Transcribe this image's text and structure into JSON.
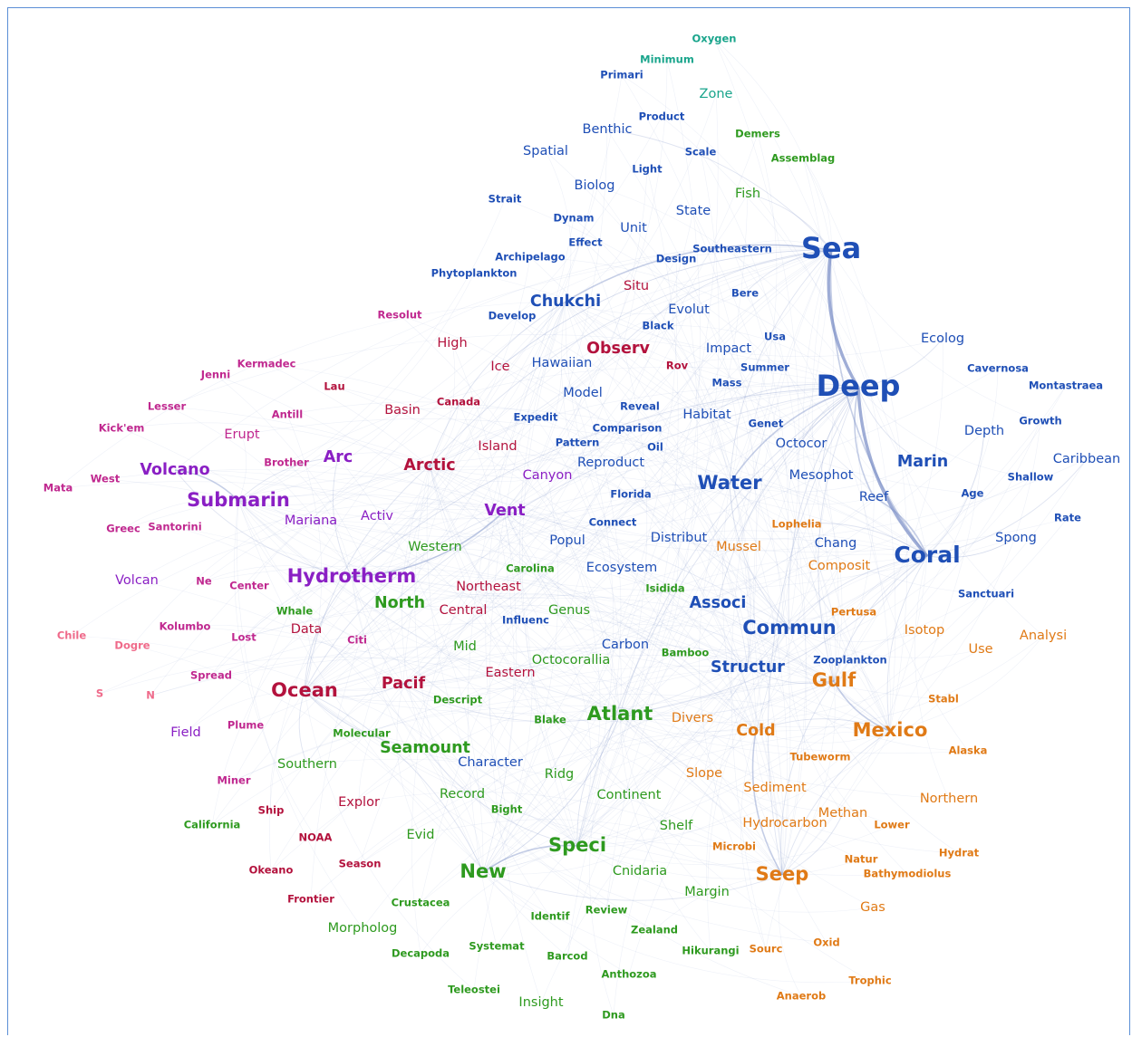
{
  "clusters": {
    "blue": "#1f4fb6",
    "teal": "#1aa58c",
    "green": "#2e9a1f",
    "orange": "#e07a16",
    "purple": "#8a1fc4",
    "crimson": "#b3123d",
    "magenta": "#c0288f",
    "pink": "#ef6a8a"
  },
  "edge_color": "#7f92c8",
  "nodes": [
    {
      "label": "Oxygen",
      "cluster": "teal",
      "size": 1
    },
    {
      "label": "Minimum",
      "cluster": "teal",
      "size": 1
    },
    {
      "label": "Primari",
      "cluster": "blue",
      "size": 1
    },
    {
      "label": "Zone",
      "cluster": "teal",
      "size": 2
    },
    {
      "label": "Product",
      "cluster": "blue",
      "size": 1
    },
    {
      "label": "Benthic",
      "cluster": "blue",
      "size": 2
    },
    {
      "label": "Demers",
      "cluster": "green",
      "size": 1
    },
    {
      "label": "Spatial",
      "cluster": "blue",
      "size": 2
    },
    {
      "label": "Scale",
      "cluster": "blue",
      "size": 1
    },
    {
      "label": "Assemblag",
      "cluster": "green",
      "size": 1
    },
    {
      "label": "Light",
      "cluster": "blue",
      "size": 1
    },
    {
      "label": "Biolog",
      "cluster": "blue",
      "size": 2
    },
    {
      "label": "Fish",
      "cluster": "green",
      "size": 2
    },
    {
      "label": "Strait",
      "cluster": "blue",
      "size": 1
    },
    {
      "label": "State",
      "cluster": "blue",
      "size": 2
    },
    {
      "label": "Dynam",
      "cluster": "blue",
      "size": 1
    },
    {
      "label": "Unit",
      "cluster": "blue",
      "size": 2
    },
    {
      "label": "Effect",
      "cluster": "blue",
      "size": 1
    },
    {
      "label": "Southeastern",
      "cluster": "blue",
      "size": 1
    },
    {
      "label": "Sea",
      "cluster": "blue",
      "size": 6
    },
    {
      "label": "Archipelago",
      "cluster": "blue",
      "size": 1
    },
    {
      "label": "Design",
      "cluster": "blue",
      "size": 1
    },
    {
      "label": "Phytoplankton",
      "cluster": "blue",
      "size": 1
    },
    {
      "label": "Situ",
      "cluster": "crimson",
      "size": 2
    },
    {
      "label": "Chukchi",
      "cluster": "blue",
      "size": 3
    },
    {
      "label": "Bere",
      "cluster": "blue",
      "size": 1
    },
    {
      "label": "Resolut",
      "cluster": "magenta",
      "size": 1
    },
    {
      "label": "Develop",
      "cluster": "blue",
      "size": 1
    },
    {
      "label": "Evolut",
      "cluster": "blue",
      "size": 2
    },
    {
      "label": "Black",
      "cluster": "blue",
      "size": 1
    },
    {
      "label": "High",
      "cluster": "crimson",
      "size": 2
    },
    {
      "label": "Observ",
      "cluster": "crimson",
      "size": 3
    },
    {
      "label": "Impact",
      "cluster": "blue",
      "size": 2
    },
    {
      "label": "Usa",
      "cluster": "blue",
      "size": 1
    },
    {
      "label": "Ecolog",
      "cluster": "blue",
      "size": 2
    },
    {
      "label": "Kermadec",
      "cluster": "magenta",
      "size": 1
    },
    {
      "label": "Ice",
      "cluster": "crimson",
      "size": 2
    },
    {
      "label": "Hawaiian",
      "cluster": "blue",
      "size": 2
    },
    {
      "label": "Rov",
      "cluster": "crimson",
      "size": 1
    },
    {
      "label": "Summer",
      "cluster": "blue",
      "size": 1
    },
    {
      "label": "Cavernosa",
      "cluster": "blue",
      "size": 1
    },
    {
      "label": "Jenni",
      "cluster": "magenta",
      "size": 1
    },
    {
      "label": "Mass",
      "cluster": "blue",
      "size": 1
    },
    {
      "label": "Deep",
      "cluster": "blue",
      "size": 6
    },
    {
      "label": "Montastraea",
      "cluster": "blue",
      "size": 1
    },
    {
      "label": "Lau",
      "cluster": "crimson",
      "size": 1
    },
    {
      "label": "Model",
      "cluster": "blue",
      "size": 2
    },
    {
      "label": "Lesser",
      "cluster": "magenta",
      "size": 1
    },
    {
      "label": "Canada",
      "cluster": "crimson",
      "size": 1
    },
    {
      "label": "Basin",
      "cluster": "crimson",
      "size": 2
    },
    {
      "label": "Reveal",
      "cluster": "blue",
      "size": 1
    },
    {
      "label": "Antill",
      "cluster": "magenta",
      "size": 1
    },
    {
      "label": "Habitat",
      "cluster": "blue",
      "size": 2
    },
    {
      "label": "Expedit",
      "cluster": "blue",
      "size": 1
    },
    {
      "label": "Growth",
      "cluster": "blue",
      "size": 1
    },
    {
      "label": "Kick'em",
      "cluster": "magenta",
      "size": 1
    },
    {
      "label": "Comparison",
      "cluster": "blue",
      "size": 1
    },
    {
      "label": "Genet",
      "cluster": "blue",
      "size": 1
    },
    {
      "label": "Erupt",
      "cluster": "magenta",
      "size": 2
    },
    {
      "label": "Depth",
      "cluster": "blue",
      "size": 2
    },
    {
      "label": "Pattern",
      "cluster": "blue",
      "size": 1
    },
    {
      "label": "Octocor",
      "cluster": "blue",
      "size": 2
    },
    {
      "label": "Island",
      "cluster": "crimson",
      "size": 2
    },
    {
      "label": "Oil",
      "cluster": "blue",
      "size": 1
    },
    {
      "label": "Caribbean",
      "cluster": "blue",
      "size": 2
    },
    {
      "label": "Brother",
      "cluster": "magenta",
      "size": 1
    },
    {
      "label": "Arc",
      "cluster": "purple",
      "size": 3
    },
    {
      "label": "Arctic",
      "cluster": "crimson",
      "size": 3
    },
    {
      "label": "Reproduct",
      "cluster": "blue",
      "size": 2
    },
    {
      "label": "Marin",
      "cluster": "blue",
      "size": 3
    },
    {
      "label": "Mata",
      "cluster": "magenta",
      "size": 1
    },
    {
      "label": "West",
      "cluster": "magenta",
      "size": 1
    },
    {
      "label": "Volcano",
      "cluster": "purple",
      "size": 3
    },
    {
      "label": "Mesophot",
      "cluster": "blue",
      "size": 2
    },
    {
      "label": "Shallow",
      "cluster": "blue",
      "size": 1
    },
    {
      "label": "Canyon",
      "cluster": "purple",
      "size": 2
    },
    {
      "label": "Water",
      "cluster": "blue",
      "size": 4
    },
    {
      "label": "Florida",
      "cluster": "blue",
      "size": 1
    },
    {
      "label": "Reef",
      "cluster": "blue",
      "size": 2
    },
    {
      "label": "Age",
      "cluster": "blue",
      "size": 1
    },
    {
      "label": "Submarin",
      "cluster": "purple",
      "size": 4
    },
    {
      "label": "Mariana",
      "cluster": "purple",
      "size": 2
    },
    {
      "label": "Activ",
      "cluster": "purple",
      "size": 2
    },
    {
      "label": "Vent",
      "cluster": "purple",
      "size": 3
    },
    {
      "label": "Rate",
      "cluster": "blue",
      "size": 1
    },
    {
      "label": "Greec",
      "cluster": "magenta",
      "size": 1
    },
    {
      "label": "Santorini",
      "cluster": "magenta",
      "size": 1
    },
    {
      "label": "Connect",
      "cluster": "blue",
      "size": 1
    },
    {
      "label": "Lophelia",
      "cluster": "orange",
      "size": 1
    },
    {
      "label": "Distribut",
      "cluster": "blue",
      "size": 2
    },
    {
      "label": "Western",
      "cluster": "green",
      "size": 2
    },
    {
      "label": "Popul",
      "cluster": "blue",
      "size": 2
    },
    {
      "label": "Mussel",
      "cluster": "orange",
      "size": 2
    },
    {
      "label": "Chang",
      "cluster": "blue",
      "size": 2
    },
    {
      "label": "Spong",
      "cluster": "blue",
      "size": 2
    },
    {
      "label": "Coral",
      "cluster": "blue",
      "size": 5
    },
    {
      "label": "Carolina",
      "cluster": "green",
      "size": 1
    },
    {
      "label": "Ecosystem",
      "cluster": "blue",
      "size": 2
    },
    {
      "label": "Composit",
      "cluster": "orange",
      "size": 2
    },
    {
      "label": "Hydrotherm",
      "cluster": "purple",
      "size": 4
    },
    {
      "label": "Volcan",
      "cluster": "purple",
      "size": 2
    },
    {
      "label": "Ne",
      "cluster": "magenta",
      "size": 1
    },
    {
      "label": "Center",
      "cluster": "magenta",
      "size": 1
    },
    {
      "label": "Northeast",
      "cluster": "crimson",
      "size": 2
    },
    {
      "label": "Isidida",
      "cluster": "green",
      "size": 1
    },
    {
      "label": "Sanctuari",
      "cluster": "blue",
      "size": 1
    },
    {
      "label": "North",
      "cluster": "green",
      "size": 3
    },
    {
      "label": "Associ",
      "cluster": "blue",
      "size": 3
    },
    {
      "label": "Genus",
      "cluster": "green",
      "size": 2
    },
    {
      "label": "Whale",
      "cluster": "green",
      "size": 1
    },
    {
      "label": "Central",
      "cluster": "crimson",
      "size": 2
    },
    {
      "label": "Influenc",
      "cluster": "blue",
      "size": 1
    },
    {
      "label": "Pertusa",
      "cluster": "orange",
      "size": 1
    },
    {
      "label": "Kolumbo",
      "cluster": "magenta",
      "size": 1
    },
    {
      "label": "Data",
      "cluster": "crimson",
      "size": 2
    },
    {
      "label": "Commun",
      "cluster": "blue",
      "size": 4
    },
    {
      "label": "Isotop",
      "cluster": "orange",
      "size": 2
    },
    {
      "label": "Analysi",
      "cluster": "orange",
      "size": 2
    },
    {
      "label": "Chile",
      "cluster": "pink",
      "size": 1
    },
    {
      "label": "Lost",
      "cluster": "magenta",
      "size": 1
    },
    {
      "label": "Dogre",
      "cluster": "pink",
      "size": 1
    },
    {
      "label": "Citi",
      "cluster": "magenta",
      "size": 1
    },
    {
      "label": "Mid",
      "cluster": "green",
      "size": 2
    },
    {
      "label": "Carbon",
      "cluster": "blue",
      "size": 2
    },
    {
      "label": "Bamboo",
      "cluster": "green",
      "size": 1
    },
    {
      "label": "Use",
      "cluster": "orange",
      "size": 2
    },
    {
      "label": "Zooplankton",
      "cluster": "blue",
      "size": 1
    },
    {
      "label": "Octocorallia",
      "cluster": "green",
      "size": 2
    },
    {
      "label": "Spread",
      "cluster": "magenta",
      "size": 1
    },
    {
      "label": "Structur",
      "cluster": "blue",
      "size": 3
    },
    {
      "label": "Eastern",
      "cluster": "crimson",
      "size": 2
    },
    {
      "label": "Gulf",
      "cluster": "orange",
      "size": 4
    },
    {
      "label": "Ocean",
      "cluster": "crimson",
      "size": 4
    },
    {
      "label": "Pacif",
      "cluster": "crimson",
      "size": 3
    },
    {
      "label": "S",
      "cluster": "pink",
      "size": 1
    },
    {
      "label": "N",
      "cluster": "pink",
      "size": 1
    },
    {
      "label": "Stabl",
      "cluster": "orange",
      "size": 1
    },
    {
      "label": "Descript",
      "cluster": "green",
      "size": 1
    },
    {
      "label": "Atlant",
      "cluster": "green",
      "size": 4
    },
    {
      "label": "Divers",
      "cluster": "orange",
      "size": 2
    },
    {
      "label": "Blake",
      "cluster": "green",
      "size": 1
    },
    {
      "label": "Field",
      "cluster": "purple",
      "size": 2
    },
    {
      "label": "Plume",
      "cluster": "magenta",
      "size": 1
    },
    {
      "label": "Cold",
      "cluster": "orange",
      "size": 3
    },
    {
      "label": "Mexico",
      "cluster": "orange",
      "size": 4
    },
    {
      "label": "Molecular",
      "cluster": "green",
      "size": 1
    },
    {
      "label": "Alaska",
      "cluster": "orange",
      "size": 1
    },
    {
      "label": "Seamount",
      "cluster": "green",
      "size": 3
    },
    {
      "label": "Tubeworm",
      "cluster": "orange",
      "size": 1
    },
    {
      "label": "Southern",
      "cluster": "green",
      "size": 2
    },
    {
      "label": "Character",
      "cluster": "blue",
      "size": 2
    },
    {
      "label": "Ridg",
      "cluster": "green",
      "size": 2
    },
    {
      "label": "Slope",
      "cluster": "orange",
      "size": 2
    },
    {
      "label": "Miner",
      "cluster": "magenta",
      "size": 1
    },
    {
      "label": "Sediment",
      "cluster": "orange",
      "size": 2
    },
    {
      "label": "Record",
      "cluster": "green",
      "size": 2
    },
    {
      "label": "Continent",
      "cluster": "green",
      "size": 2
    },
    {
      "label": "Northern",
      "cluster": "orange",
      "size": 2
    },
    {
      "label": "Explor",
      "cluster": "crimson",
      "size": 2
    },
    {
      "label": "Ship",
      "cluster": "crimson",
      "size": 1
    },
    {
      "label": "Bight",
      "cluster": "green",
      "size": 1
    },
    {
      "label": "Methan",
      "cluster": "orange",
      "size": 2
    },
    {
      "label": "Hydrocarbon",
      "cluster": "orange",
      "size": 2
    },
    {
      "label": "Lower",
      "cluster": "orange",
      "size": 1
    },
    {
      "label": "California",
      "cluster": "green",
      "size": 1
    },
    {
      "label": "Shelf",
      "cluster": "green",
      "size": 2
    },
    {
      "label": "NOAA",
      "cluster": "crimson",
      "size": 1
    },
    {
      "label": "Evid",
      "cluster": "green",
      "size": 2
    },
    {
      "label": "Microbi",
      "cluster": "orange",
      "size": 1
    },
    {
      "label": "Speci",
      "cluster": "green",
      "size": 4
    },
    {
      "label": "Hydrat",
      "cluster": "orange",
      "size": 1
    },
    {
      "label": "Season",
      "cluster": "crimson",
      "size": 1
    },
    {
      "label": "Natur",
      "cluster": "orange",
      "size": 1
    },
    {
      "label": "Okeano",
      "cluster": "crimson",
      "size": 1
    },
    {
      "label": "New",
      "cluster": "green",
      "size": 4
    },
    {
      "label": "Cnidaria",
      "cluster": "green",
      "size": 2
    },
    {
      "label": "Seep",
      "cluster": "orange",
      "size": 4
    },
    {
      "label": "Bathymodiolus",
      "cluster": "orange",
      "size": 1
    },
    {
      "label": "Frontier",
      "cluster": "crimson",
      "size": 1
    },
    {
      "label": "Margin",
      "cluster": "green",
      "size": 2
    },
    {
      "label": "Crustacea",
      "cluster": "green",
      "size": 1
    },
    {
      "label": "Gas",
      "cluster": "orange",
      "size": 2
    },
    {
      "label": "Review",
      "cluster": "green",
      "size": 1
    },
    {
      "label": "Identif",
      "cluster": "green",
      "size": 1
    },
    {
      "label": "Morpholog",
      "cluster": "green",
      "size": 2
    },
    {
      "label": "Zealand",
      "cluster": "green",
      "size": 1
    },
    {
      "label": "Oxid",
      "cluster": "orange",
      "size": 1
    },
    {
      "label": "Systemat",
      "cluster": "green",
      "size": 1
    },
    {
      "label": "Hikurangi",
      "cluster": "green",
      "size": 1
    },
    {
      "label": "Sourc",
      "cluster": "orange",
      "size": 1
    },
    {
      "label": "Decapoda",
      "cluster": "green",
      "size": 1
    },
    {
      "label": "Barcod",
      "cluster": "green",
      "size": 1
    },
    {
      "label": "Trophic",
      "cluster": "orange",
      "size": 1
    },
    {
      "label": "Anthozoa",
      "cluster": "green",
      "size": 1
    },
    {
      "label": "Anaerob",
      "cluster": "orange",
      "size": 1
    },
    {
      "label": "Teleostei",
      "cluster": "green",
      "size": 1
    },
    {
      "label": "Insight",
      "cluster": "green",
      "size": 2
    },
    {
      "label": "Dna",
      "cluster": "green",
      "size": 1
    }
  ],
  "edges": [
    [
      "Sea",
      "Deep",
      3
    ],
    [
      "Deep",
      "Coral",
      3
    ],
    [
      "Sea",
      "Coral",
      2
    ],
    [
      "Sea",
      "Chukchi",
      2
    ],
    [
      "Deep",
      "Water",
      2
    ],
    [
      "Deep",
      "Reef",
      2
    ],
    [
      "Coral",
      "Reef",
      2
    ],
    [
      "Gulf",
      "Mexico",
      2
    ],
    [
      "Cold",
      "Seep",
      2
    ],
    [
      "Seep",
      "Methan",
      1
    ],
    [
      "Speci",
      "New",
      2
    ],
    [
      "Ocean",
      "Pacif",
      1
    ],
    [
      "Submarin",
      "Volcano",
      2
    ],
    [
      "Hydrotherm",
      "Vent",
      2
    ],
    [
      "Arc",
      "Submarin",
      1
    ],
    [
      "Deep",
      "Commun",
      1
    ],
    [
      "Deep",
      "Habitat",
      1
    ],
    [
      "Deep",
      "Mesophot",
      1
    ],
    [
      "Deep",
      "Marin",
      1
    ],
    [
      "Sea",
      "Fish",
      1
    ],
    [
      "Sea",
      "Benthic",
      1
    ],
    [
      "Sea",
      "Arctic",
      1
    ],
    [
      "Sea",
      "Bere",
      1
    ],
    [
      "Deep",
      "Atlant",
      1
    ],
    [
      "Deep",
      "Ocean",
      1
    ],
    [
      "Deep",
      "Speci",
      1
    ],
    [
      "Deep",
      "Gulf",
      1
    ],
    [
      "Deep",
      "Seep",
      1
    ],
    [
      "Coral",
      "Caribbean",
      1
    ],
    [
      "Coral",
      "Spong",
      1
    ],
    [
      "Coral",
      "Mexico",
      1
    ],
    [
      "Coral",
      "Gulf",
      1
    ],
    [
      "Coral",
      "Lophelia",
      1
    ],
    [
      "Coral",
      "Commun",
      1
    ],
    [
      "Mexico",
      "Seep",
      1
    ],
    [
      "Gulf",
      "Seep",
      1
    ],
    [
      "Hydrotherm",
      "Ocean",
      1
    ],
    [
      "Ocean",
      "Seamount",
      1
    ],
    [
      "Ocean",
      "Southern",
      1
    ],
    [
      "Atlant",
      "Speci",
      1
    ],
    [
      "New",
      "Seep",
      1
    ],
    [
      "New",
      "Ocean",
      1
    ],
    [
      "Vent",
      "Ocean",
      1
    ],
    [
      "Arctic",
      "Ocean",
      1
    ],
    [
      "Volcano",
      "Hydrotherm",
      1
    ],
    [
      "Arc",
      "Hydrotherm",
      1
    ],
    [
      "Water",
      "Commun",
      1
    ],
    [
      "Structur",
      "Gulf",
      1
    ],
    [
      "Atlant",
      "Coral",
      1
    ],
    [
      "Sea",
      "Water",
      1
    ],
    [
      "Sea",
      "Observ",
      1
    ],
    [
      "Deep",
      "Octocor",
      1
    ],
    [
      "Deep",
      "Ecolog",
      1
    ],
    [
      "Coral",
      "Depth",
      1
    ],
    [
      "Sea",
      "Ice",
      1
    ],
    [
      "Chukchi",
      "Arctic",
      1
    ],
    [
      "Deep",
      "Associ",
      1
    ],
    [
      "Deep",
      "Hydrotherm",
      1
    ],
    [
      "New",
      "Atlant",
      1
    ],
    [
      "Seamount",
      "Speci",
      1
    ],
    [
      "Pacif",
      "Atlant",
      1
    ],
    [
      "Mexico",
      "Cold",
      1
    ]
  ]
}
